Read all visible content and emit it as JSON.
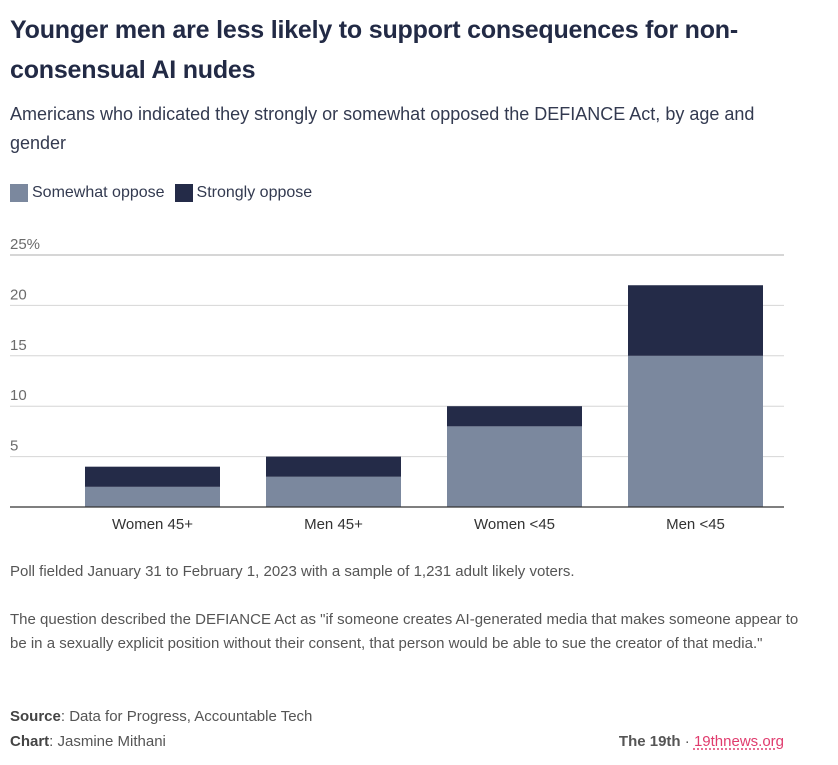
{
  "header": {
    "title": "Younger men are less likely to support consequences for non-consensual AI nudes",
    "subtitle": "Americans who indicated they strongly or somewhat opposed the DEFIANCE Act, by age and gender"
  },
  "legend": [
    {
      "label": "Somewhat oppose",
      "color": "#7b889e"
    },
    {
      "label": "Strongly oppose",
      "color": "#242b48"
    }
  ],
  "chart_data": {
    "type": "bar",
    "stacked": true,
    "title": "Younger men are less likely to support consequences for non-consensual AI nudes",
    "subtitle": "Americans who indicated they strongly or somewhat opposed the DEFIANCE Act, by age and gender",
    "categories": [
      "Women 45+",
      "Men 45+",
      "Women <45",
      "Men <45"
    ],
    "series": [
      {
        "name": "Somewhat oppose",
        "color": "#7b889e",
        "values": [
          2,
          3,
          8,
          15
        ]
      },
      {
        "name": "Strongly oppose",
        "color": "#242b48",
        "values": [
          2,
          2,
          2,
          7
        ]
      }
    ],
    "xlabel": "",
    "ylabel": "",
    "ylim": [
      0,
      25
    ],
    "yticks": [
      5,
      10,
      15,
      20,
      25
    ],
    "ytick_labels": [
      "5",
      "10",
      "15",
      "20",
      "25%"
    ],
    "grid": true,
    "legend_position": "top-left"
  },
  "notes": {
    "poll": "Poll fielded January 31 to February 1, 2023 with a sample of 1,231 adult likely voters.",
    "question": "The question described the DEFIANCE Act as \"if someone creates AI-generated media that makes someone appear to be in a sexually explicit position without their consent, that person would be able to sue the creator of that media.\""
  },
  "footer": {
    "source_label": "Source",
    "source_value": ": Data for Progress, Accountable Tech",
    "chart_label": "Chart",
    "chart_value": ": Jasmine Mithani",
    "brand_name": "The 19th",
    "separator": "·",
    "brand_link": "19thnews.org"
  }
}
